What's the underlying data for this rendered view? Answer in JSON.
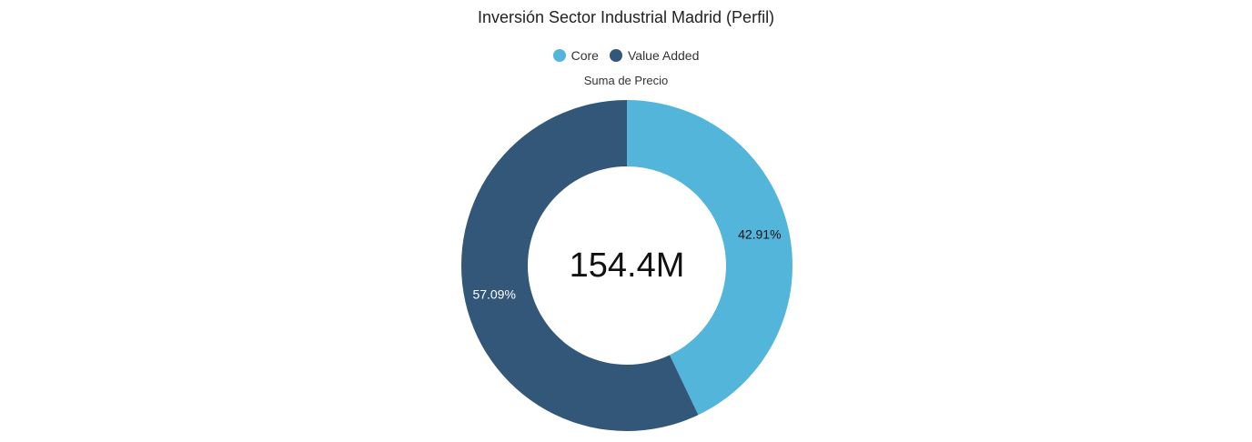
{
  "chart_data": {
    "type": "pie",
    "title": "Inversión Sector Industrial Madrid (Perfil)",
    "subtitle": "Suma de Precio",
    "center_label": "154.4M",
    "series": [
      {
        "name": "Core",
        "value": 42.91,
        "label": "42.91%",
        "color": "#54b5db",
        "label_color": "#111111"
      },
      {
        "name": "Value Added",
        "value": 57.09,
        "label": "57.09%",
        "color": "#335779",
        "label_color": "#ffffff"
      }
    ],
    "legend": "top-center"
  }
}
